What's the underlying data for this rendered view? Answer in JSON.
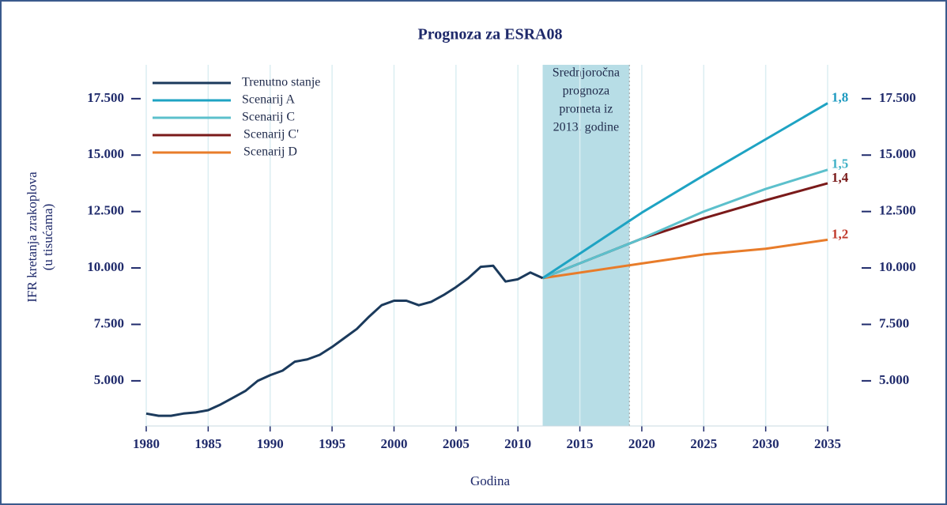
{
  "chart_data": {
    "type": "line",
    "title": "Prognoza za ESRA08",
    "x_label": "Godina",
    "y_label": [
      "IFR kretanja zrakoplova",
      "(u tisućama)"
    ],
    "xlim": [
      1980,
      2035
    ],
    "xticks": [
      1980,
      1985,
      1990,
      1995,
      2000,
      2005,
      2010,
      2015,
      2020,
      2025,
      2030,
      2035
    ],
    "ylim": [
      3000,
      19000
    ],
    "yticks": [
      {
        "value": 5000,
        "label": "5.000"
      },
      {
        "value": 7500,
        "label": "7.500"
      },
      {
        "value": 10000,
        "label": "10.000"
      },
      {
        "value": 12500,
        "label": "12.500"
      },
      {
        "value": 15000,
        "label": "15.000"
      },
      {
        "value": 17500,
        "label": "17.500"
      }
    ],
    "grid": true,
    "legend": "top-left",
    "shaded_region": {
      "x": [
        2012,
        2019
      ],
      "color": "#b7dde6",
      "lines": [
        "Srednjoročna",
        "prognoza",
        "prometa iz",
        "2013. godine"
      ]
    },
    "series": [
      {
        "name": "Trenutno stanje",
        "color": "#1b3a5c",
        "x": [
          1980,
          1981,
          1982,
          1983,
          1984,
          1985,
          1986,
          1987,
          1988,
          1989,
          1990,
          1991,
          1992,
          1993,
          1994,
          1995,
          1996,
          1997,
          1998,
          1999,
          2000,
          2001,
          2002,
          2003,
          2004,
          2005,
          2006,
          2007,
          2008,
          2009,
          2010,
          2011,
          2012
        ],
        "values": [
          3550,
          3450,
          3450,
          3550,
          3600,
          3700,
          3950,
          4250,
          4550,
          5000,
          5250,
          5450,
          5850,
          5950,
          6150,
          6500,
          6900,
          7300,
          7850,
          8350,
          8550,
          8550,
          8350,
          8500,
          8800,
          9150,
          9550,
          10050,
          10100,
          9400,
          9500,
          9800,
          9550
        ]
      },
      {
        "name": "Scenarij A",
        "color": "#1ea3c3",
        "end_label": "1,8",
        "end_label_color": "#1e9ac0",
        "x": [
          2012,
          2020,
          2025,
          2030,
          2035
        ],
        "values": [
          9550,
          12450,
          14100,
          15700,
          17300
        ]
      },
      {
        "name": "Scenarij C",
        "color": "#5cc0cc",
        "end_label": "1,5",
        "end_label_color": "#3fb0c6",
        "x": [
          2012,
          2020,
          2025,
          2030,
          2035
        ],
        "values": [
          9550,
          11300,
          12500,
          13500,
          14350
        ]
      },
      {
        "name": "Scenarij C'",
        "color": "#7a1a1a",
        "end_label": "1,4",
        "end_label_color": "#7a1a1a",
        "x": [
          2012,
          2020,
          2025,
          2030,
          2035
        ],
        "values": [
          9550,
          11300,
          12200,
          13000,
          13750
        ]
      },
      {
        "name": "Scenarij D",
        "color": "#e87c2a",
        "end_label": "1,2",
        "end_label_color": "#c0392b",
        "x": [
          2012,
          2020,
          2025,
          2030,
          2035
        ],
        "values": [
          9550,
          10200,
          10600,
          10850,
          11250
        ]
      }
    ]
  }
}
